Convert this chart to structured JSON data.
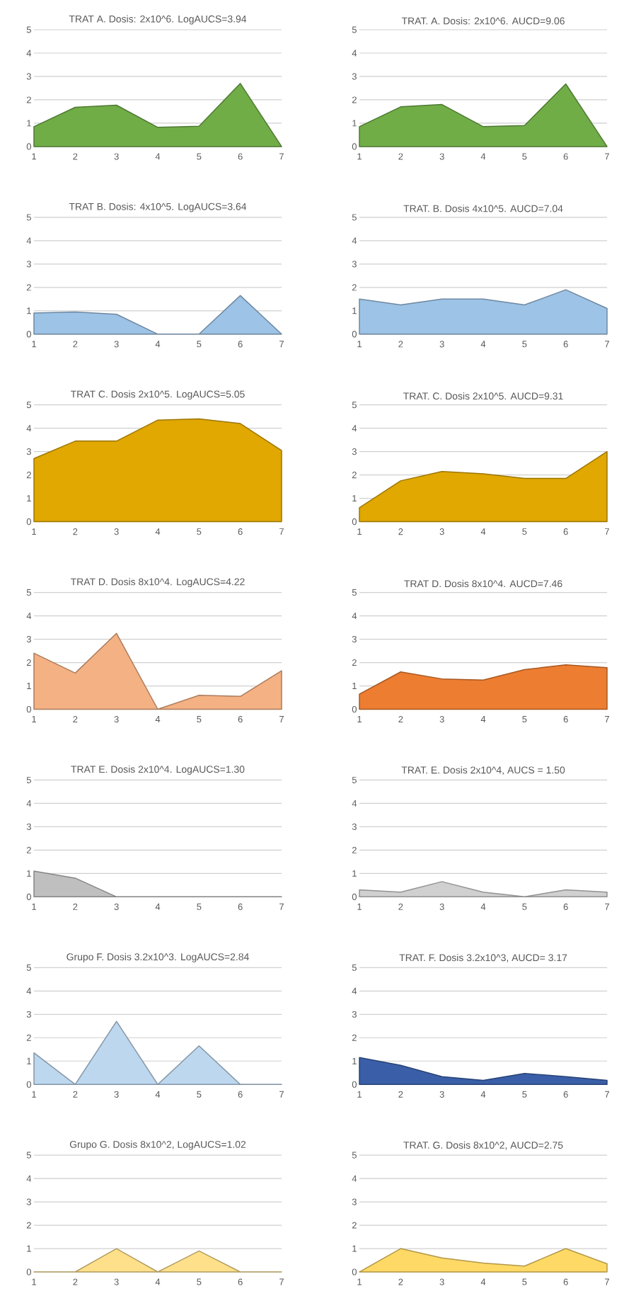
{
  "chart_data": [
    {
      "type": "area",
      "title": "TRAT  A. Dosis: 2x10^6. LogAUCS=3.94",
      "x": [
        1,
        2,
        3,
        4,
        5,
        6,
        7
      ],
      "values": [
        0.85,
        1.68,
        1.77,
        0.82,
        0.87,
        2.7,
        0
      ],
      "color": "#70ad47",
      "xlim": [
        1,
        7
      ],
      "ylim": [
        0,
        5
      ],
      "xticks": [
        1,
        2,
        3,
        4,
        5,
        6,
        7
      ],
      "yticks": [
        0,
        1,
        2,
        3,
        4,
        5
      ],
      "grid": "y"
    },
    {
      "type": "area",
      "title": "TRAT. A. Dosis: 2x10^6. AUCD=9.06",
      "x": [
        1,
        2,
        3,
        4,
        5,
        6,
        7
      ],
      "values": [
        0.85,
        1.7,
        1.8,
        0.85,
        0.9,
        2.68,
        0
      ],
      "color": "#70ad47",
      "xlim": [
        1,
        7
      ],
      "ylim": [
        0,
        5
      ],
      "xticks": [
        1,
        2,
        3,
        4,
        5,
        6,
        7
      ],
      "yticks": [
        0,
        1,
        2,
        3,
        4,
        5
      ],
      "grid": "y"
    },
    {
      "type": "area",
      "title": "TRAT  B. Dosis: 4x10^5. LogAUCS=3.64",
      "x": [
        1,
        2,
        3,
        4,
        5,
        6,
        7
      ],
      "values": [
        0.9,
        0.95,
        0.85,
        0,
        0,
        1.65,
        0
      ],
      "color": "#9dc3e6",
      "xlim": [
        1,
        7
      ],
      "ylim": [
        0,
        5
      ],
      "xticks": [
        1,
        2,
        3,
        4,
        5,
        6,
        7
      ],
      "yticks": [
        0,
        1,
        2,
        3,
        4,
        5
      ],
      "grid": "y"
    },
    {
      "type": "area",
      "title": "TRAT. B. Dosis 4x10^5. AUCD=7.04",
      "x": [
        1,
        2,
        3,
        4,
        5,
        6,
        7
      ],
      "values": [
        1.5,
        1.25,
        1.5,
        1.5,
        1.25,
        1.9,
        1.1
      ],
      "color": "#9dc3e6",
      "xlim": [
        1,
        7
      ],
      "ylim": [
        0,
        5
      ],
      "xticks": [
        1,
        2,
        3,
        4,
        5,
        6,
        7
      ],
      "yticks": [
        0,
        1,
        2,
        3,
        4,
        5
      ],
      "grid": "y"
    },
    {
      "type": "area",
      "title": "TRAT C. Dosis 2x10^5. LogAUCS=5.05",
      "x": [
        1,
        2,
        3,
        4,
        5,
        6,
        7
      ],
      "values": [
        2.7,
        3.45,
        3.45,
        4.35,
        4.4,
        4.2,
        3.05
      ],
      "color": "#e0a800",
      "xlim": [
        1,
        7
      ],
      "ylim": [
        0,
        5
      ],
      "xticks": [
        1,
        2,
        3,
        4,
        5,
        6,
        7
      ],
      "yticks": [
        0,
        1,
        2,
        3,
        4,
        5
      ],
      "grid": "y"
    },
    {
      "type": "area",
      "title": "TRAT. C. Dosis 2x10^5. AUCD=9.31",
      "x": [
        1,
        2,
        3,
        4,
        5,
        6,
        7
      ],
      "values": [
        0.6,
        1.75,
        2.15,
        2.05,
        1.85,
        1.85,
        3.0
      ],
      "color": "#e0a800",
      "xlim": [
        1,
        7
      ],
      "ylim": [
        0,
        5
      ],
      "xticks": [
        1,
        2,
        3,
        4,
        5,
        6,
        7
      ],
      "yticks": [
        0,
        1,
        2,
        3,
        4,
        5
      ],
      "grid": "y"
    },
    {
      "type": "area",
      "title": "TRAT  D. Dosis 8x10^4. LogAUCS=4.22",
      "x": [
        1,
        2,
        3,
        4,
        5,
        6,
        7
      ],
      "values": [
        2.4,
        1.55,
        3.25,
        0,
        0.6,
        0.55,
        1.65
      ],
      "color": "#f4b183",
      "xlim": [
        1,
        7
      ],
      "ylim": [
        0,
        5
      ],
      "xticks": [
        1,
        2,
        3,
        4,
        5,
        6,
        7
      ],
      "yticks": [
        0,
        1,
        2,
        3,
        4,
        5
      ],
      "grid": "y"
    },
    {
      "type": "area",
      "title": "TRAT D.  Dosis 8x10^4. AUCD=7.46",
      "x": [
        1,
        2,
        3,
        4,
        5,
        6,
        7
      ],
      "values": [
        0.65,
        1.6,
        1.3,
        1.25,
        1.7,
        1.9,
        1.78
      ],
      "color": "#ed7d31",
      "xlim": [
        1,
        7
      ],
      "ylim": [
        0,
        5
      ],
      "xticks": [
        1,
        2,
        3,
        4,
        5,
        6,
        7
      ],
      "yticks": [
        0,
        1,
        2,
        3,
        4,
        5
      ],
      "grid": "y"
    },
    {
      "type": "area",
      "title": "TRAT  E. Dosis 2x10^4. LogAUCS=1.30",
      "x": [
        1,
        2,
        3,
        4,
        5,
        6,
        7
      ],
      "values": [
        1.1,
        0.8,
        0,
        0,
        0,
        0,
        0
      ],
      "color": "#bfbfbf",
      "xlim": [
        1,
        7
      ],
      "ylim": [
        0,
        5
      ],
      "xticks": [
        1,
        2,
        3,
        4,
        5,
        6,
        7
      ],
      "yticks": [
        0,
        1,
        2,
        3,
        4,
        5
      ],
      "grid": "y"
    },
    {
      "type": "area",
      "title": "TRAT. E. Dosis 2x10^4, AUCS = 1.50",
      "x": [
        1,
        2,
        3,
        4,
        5,
        6,
        7
      ],
      "values": [
        0.3,
        0.2,
        0.65,
        0.2,
        0,
        0.3,
        0.2
      ],
      "color": "#d0d0d0",
      "xlim": [
        1,
        7
      ],
      "ylim": [
        0,
        5
      ],
      "xticks": [
        1,
        2,
        3,
        4,
        5,
        6,
        7
      ],
      "yticks": [
        0,
        1,
        2,
        3,
        4,
        5
      ],
      "grid": "y"
    },
    {
      "type": "area",
      "title": "Grupo F. Dosis 3.2x10^3. LogAUCS=2.84",
      "x": [
        1,
        2,
        3,
        4,
        5,
        6,
        7
      ],
      "values": [
        1.35,
        0,
        2.7,
        0,
        1.65,
        0,
        0
      ],
      "color": "#bdd7ee",
      "xlim": [
        1,
        7
      ],
      "ylim": [
        0,
        5
      ],
      "xticks": [
        1,
        2,
        3,
        4,
        5,
        6,
        7
      ],
      "yticks": [
        0,
        1,
        2,
        3,
        4,
        5
      ],
      "grid": "y"
    },
    {
      "type": "area",
      "title": "TRAT. F. Dosis 3.2x10^3, AUCD= 3.17",
      "x": [
        1,
        2,
        3,
        4,
        5,
        6,
        7
      ],
      "values": [
        1.15,
        0.82,
        0.33,
        0.17,
        0.47,
        0.33,
        0.17
      ],
      "color": "#3a5fa8",
      "xlim": [
        1,
        7
      ],
      "ylim": [
        0,
        5
      ],
      "xticks": [
        1,
        2,
        3,
        4,
        5,
        6,
        7
      ],
      "yticks": [
        0,
        1,
        2,
        3,
        4,
        5
      ],
      "grid": "y"
    },
    {
      "type": "area",
      "title": "Grupo G. Dosis 8x10^2, LogAUCS=1.02",
      "x": [
        1,
        2,
        3,
        4,
        5,
        6,
        7
      ],
      "values": [
        0,
        0,
        1.0,
        0,
        0.9,
        0,
        0
      ],
      "color": "#ffe08a",
      "xlim": [
        1,
        7
      ],
      "ylim": [
        0,
        5
      ],
      "xticks": [
        1,
        2,
        3,
        4,
        5,
        6,
        7
      ],
      "yticks": [
        0,
        1,
        2,
        3,
        4,
        5
      ],
      "grid": "y"
    },
    {
      "type": "area",
      "title": "TRAT. G. Dosis 8x10^2, AUCD=2.75",
      "x": [
        1,
        2,
        3,
        4,
        5,
        6,
        7
      ],
      "values": [
        0,
        1.0,
        0.6,
        0.38,
        0.25,
        1.0,
        0.35
      ],
      "color": "#ffd966",
      "xlim": [
        1,
        7
      ],
      "ylim": [
        0,
        5
      ],
      "xticks": [
        1,
        2,
        3,
        4,
        5,
        6,
        7
      ],
      "yticks": [
        0,
        1,
        2,
        3,
        4,
        5
      ],
      "grid": "y"
    }
  ]
}
